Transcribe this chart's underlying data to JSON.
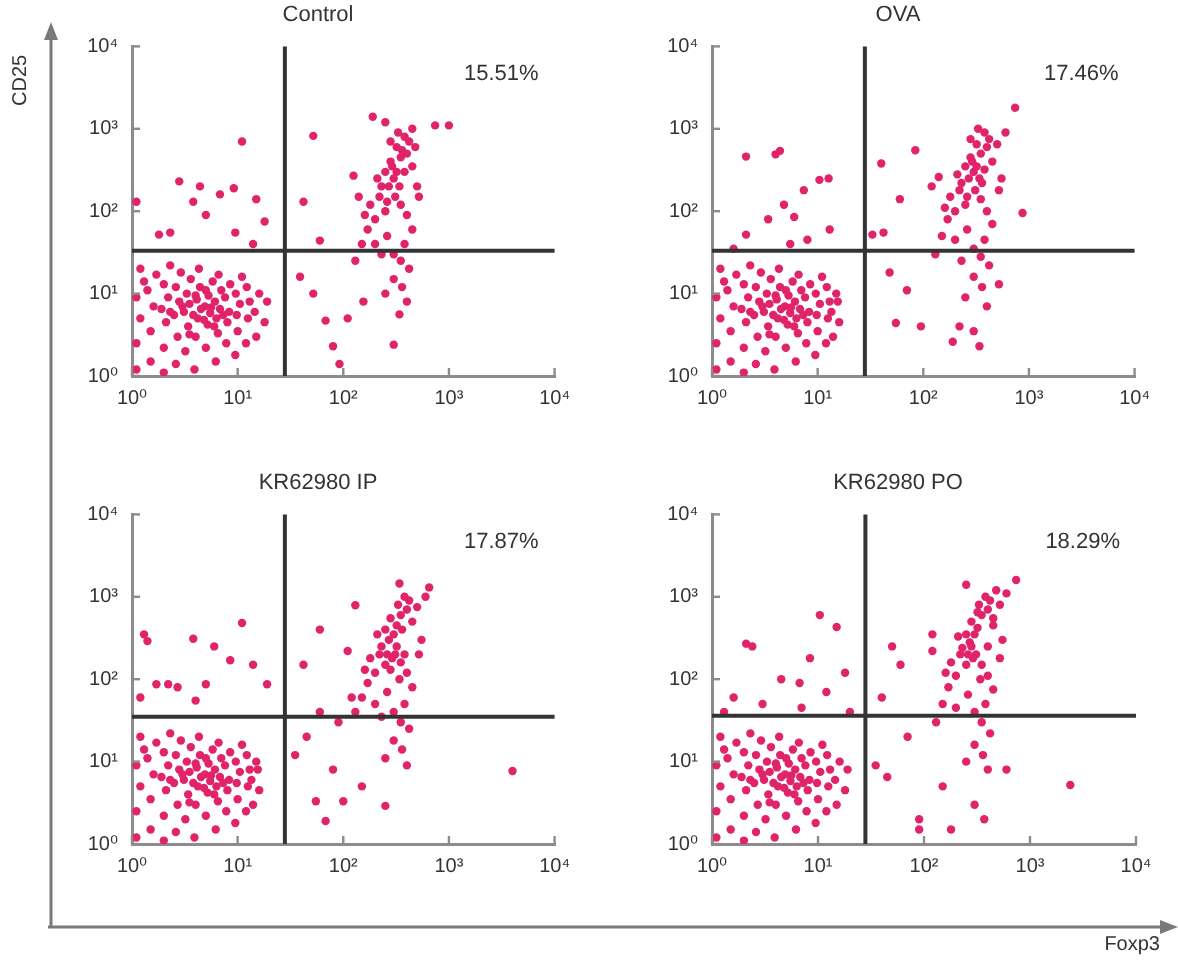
{
  "chart_data": [
    {
      "type": "scatter",
      "title": "Control",
      "ylabel": "CD25",
      "log": "xy",
      "xlim": [
        1,
        10000
      ],
      "ylim": [
        1,
        10000
      ],
      "xticks": [
        {
          "value": 1,
          "label": "10⁰"
        },
        {
          "value": 10,
          "label": "10¹"
        },
        {
          "value": 100,
          "label": "10²"
        },
        {
          "value": 1000,
          "label": "10³"
        },
        {
          "value": 10000,
          "label": "10⁴"
        }
      ],
      "yticks": [
        {
          "value": 1,
          "label": "10⁰"
        },
        {
          "value": 10,
          "label": "10¹"
        },
        {
          "value": 100,
          "label": "10²"
        },
        {
          "value": 1000,
          "label": "10³"
        },
        {
          "value": 10000,
          "label": "10⁴"
        }
      ],
      "marker": "circle",
      "annotations": [
        "15.51%"
      ],
      "ref_lines": [
        {
          "axis": "x",
          "value": 28,
          "color": "#333333"
        },
        {
          "axis": "y",
          "value": 33,
          "color": "#333333"
        }
      ],
      "series": [
        {
          "color": "#e0236a",
          "x": [
            1.1,
            1.1,
            1.2,
            1.1,
            1.3,
            1.2,
            1.5,
            1.5,
            1.6,
            1.4,
            1.7,
            2,
            2,
            2.1,
            1.9,
            2.2,
            2,
            2.3,
            2.6,
            2.7,
            2.5,
            2.8,
            2.6,
            2.9,
            3.2,
            3.4,
            3.1,
            3.5,
            3.3,
            3.6,
            3.9,
            4,
            4.2,
            4.5,
            4.1,
            4.4,
            4.3,
            5,
            5.2,
            5.5,
            4.9,
            5.3,
            5.8,
            6.2,
            6.5,
            6.3,
            6.8,
            6.1,
            7,
            6.6,
            7.8,
            8,
            8.3,
            7.6,
            8.5,
            9.5,
            10,
            9.8,
            10.5,
            9.6,
            11,
            12,
            12.5,
            13,
            12.2,
            15,
            14.5,
            16,
            18,
            19,
            3.8,
            4.8,
            5.6,
            3,
            4,
            6,
            2.3,
            7.3,
            5,
            3.5
          ],
          "values": [
            1.2,
            2.5,
            5,
            9,
            14,
            20,
            1.5,
            3.5,
            7,
            11,
            17,
            1.1,
            2.2,
            4.5,
            6.5,
            9,
            13,
            22,
            1.4,
            3,
            5.5,
            8,
            12,
            18,
            2,
            4,
            6,
            7.5,
            10,
            15,
            1.2,
            3,
            5,
            6.5,
            8.5,
            12,
            20,
            2.2,
            4.2,
            5.8,
            7,
            9.5,
            14,
            1.5,
            3.3,
            5,
            6.5,
            8,
            11,
            17,
            2.5,
            4.5,
            6,
            9,
            13,
            1.8,
            3.5,
            5.5,
            7.5,
            10,
            16,
            2.5,
            5,
            8,
            12,
            3,
            6,
            10,
            4.5,
            8,
            5.5,
            4.8,
            6.8,
            7,
            9.5,
            4,
            6,
            5.5,
            11,
            3.2
          ]
        },
        {
          "color": "#e0236a",
          "x": [
            2.8,
            4.4,
            6.8,
            9.2,
            11,
            1.1,
            3.8,
            5,
            15,
            18,
            1.8,
            2.3,
            9.5,
            14,
            39,
            52,
            68,
            80,
            92,
            60,
            42,
            52,
            125,
            155,
            110,
            340,
            300,
            190,
            250,
            740,
            1000,
            150,
            170,
            130,
            200,
            180,
            220,
            250,
            270,
            300,
            320,
            280,
            350,
            400,
            420,
            380,
            330,
            450,
            480,
            250,
            230,
            310,
            350,
            400,
            450,
            380,
            300,
            260,
            350,
            420,
            300,
            360,
            250,
            400,
            500,
            520,
            200,
            160,
            140,
            320,
            280,
            450,
            360,
            290,
            340,
            380,
            260,
            210,
            230
          ],
          "values": [
            230,
            200,
            160,
            190,
            700,
            130,
            130,
            90,
            140,
            75,
            52,
            55,
            55,
            40,
            16,
            10,
            4.7,
            2.3,
            1.4,
            44,
            130,
            820,
            270,
            8,
            5,
            5.6,
            2.4,
            1400,
            1200,
            1100,
            1100,
            40,
            60,
            25,
            80,
            120,
            150,
            100,
            200,
            250,
            300,
            400,
            450,
            500,
            700,
            800,
            900,
            350,
            600,
            300,
            200,
            150,
            120,
            90,
            60,
            40,
            30,
            50,
            25,
            20,
            15,
            12,
            10,
            8,
            200,
            150,
            40,
            90,
            150,
            600,
            700,
            1000,
            550,
            350,
            200,
            300,
            130,
            250,
            30
          ]
        }
      ]
    },
    {
      "type": "scatter",
      "title": "OVA",
      "log": "xy",
      "xlim": [
        1,
        10000
      ],
      "ylim": [
        1,
        10000
      ],
      "xticks": [
        {
          "value": 1,
          "label": "10⁰"
        },
        {
          "value": 10,
          "label": "10¹"
        },
        {
          "value": 100,
          "label": "10²"
        },
        {
          "value": 1000,
          "label": "10³"
        },
        {
          "value": 10000,
          "label": "10⁴"
        }
      ],
      "yticks": [
        {
          "value": 1,
          "label": "10⁰"
        },
        {
          "value": 10,
          "label": "10¹"
        },
        {
          "value": 100,
          "label": "10²"
        },
        {
          "value": 1000,
          "label": "10³"
        },
        {
          "value": 10000,
          "label": "10⁴"
        }
      ],
      "marker": "circle",
      "annotations": [
        "17.46%"
      ],
      "ref_lines": [
        {
          "axis": "x",
          "value": 28,
          "color": "#333333"
        },
        {
          "axis": "y",
          "value": 33,
          "color": "#333333"
        }
      ],
      "series": [
        {
          "color": "#e0236a",
          "x": [
            1.1,
            1.1,
            1.2,
            1.1,
            1.3,
            1.2,
            1.5,
            1.5,
            1.6,
            1.4,
            1.7,
            2,
            2,
            2.1,
            1.9,
            2.2,
            2,
            2.3,
            2.6,
            2.7,
            2.5,
            2.8,
            2.6,
            2.9,
            3.2,
            3.4,
            3.1,
            3.5,
            3.3,
            3.6,
            3.9,
            4,
            4.2,
            4.5,
            4.1,
            4.4,
            4.3,
            5,
            5.2,
            5.5,
            4.9,
            5.3,
            5.8,
            6.2,
            6.5,
            6.3,
            6.8,
            6.1,
            7,
            6.6,
            7.8,
            8,
            8.3,
            7.6,
            8.5,
            9.5,
            10,
            9.8,
            10.5,
            9.6,
            11,
            12,
            12.5,
            13,
            12.2,
            14,
            13.5,
            15,
            16,
            15.5,
            3.8,
            4.8,
            5.6,
            3,
            4,
            6,
            2.3,
            7.3,
            5,
            3.5
          ],
          "values": [
            1.2,
            2.5,
            5,
            9,
            14,
            20,
            1.5,
            3.5,
            7,
            11,
            17,
            1.1,
            2.2,
            4.5,
            6.5,
            9,
            13,
            22,
            1.4,
            3,
            5.5,
            8,
            12,
            18,
            2,
            4,
            6,
            7.5,
            10,
            15,
            1.2,
            3,
            5,
            6.5,
            8.5,
            12,
            20,
            2.2,
            4.2,
            5.8,
            7,
            9.5,
            14,
            1.5,
            3.3,
            5,
            6.5,
            8,
            11,
            17,
            2.5,
            4.5,
            6,
            9,
            13,
            1.8,
            3.5,
            5.5,
            7.5,
            10,
            16,
            2.5,
            5,
            8,
            12,
            3,
            6,
            10,
            4.5,
            8,
            5.5,
            4.8,
            6.8,
            7,
            9.5,
            4,
            6,
            5.5,
            11,
            3.2
          ]
        },
        {
          "color": "#e0236a",
          "x": [
            2.1,
            4,
            4.4,
            7.4,
            10.4,
            12.7,
            4.8,
            6,
            2.1,
            3.4,
            1.6,
            8,
            13,
            5.5,
            84,
            40,
            60,
            140,
            33,
            42,
            48,
            70,
            55,
            95,
            190,
            220,
            300,
            340,
            870,
            520,
            740,
            150,
            170,
            130,
            200,
            180,
            220,
            250,
            270,
            300,
            320,
            280,
            350,
            400,
            420,
            380,
            330,
            450,
            500,
            250,
            230,
            310,
            350,
            400,
            450,
            380,
            300,
            260,
            350,
            420,
            300,
            360,
            250,
            400,
            550,
            520,
            200,
            160,
            120,
            320,
            280,
            600,
            360,
            290,
            340,
            380,
            260,
            210,
            230
          ],
          "values": [
            460,
            490,
            540,
            180,
            240,
            250,
            120,
            85,
            52,
            80,
            35,
            45,
            60,
            40,
            550,
            380,
            140,
            260,
            52,
            55,
            18,
            11,
            4.4,
            4,
            2.6,
            4,
            3.5,
            2.3,
            95,
            13,
            1800,
            50,
            80,
            30,
            100,
            150,
            180,
            120,
            250,
            300,
            350,
            450,
            500,
            600,
            750,
            900,
            1000,
            400,
            650,
            350,
            220,
            180,
            140,
            100,
            70,
            45,
            35,
            60,
            28,
            22,
            16,
            12,
            9,
            7,
            250,
            180,
            45,
            110,
            200,
            650,
            750,
            900,
            220,
            400,
            250,
            320,
            150,
            280,
            25
          ]
        }
      ]
    },
    {
      "type": "scatter",
      "title": "KR62980 IP",
      "log": "xy",
      "xlim": [
        1,
        10000
      ],
      "ylim": [
        1,
        10000
      ],
      "xticks": [
        {
          "value": 1,
          "label": "10⁰"
        },
        {
          "value": 10,
          "label": "10¹"
        },
        {
          "value": 100,
          "label": "10²"
        },
        {
          "value": 1000,
          "label": "10³"
        },
        {
          "value": 10000,
          "label": "10⁴"
        }
      ],
      "yticks": [
        {
          "value": 1,
          "label": "10⁰"
        },
        {
          "value": 10,
          "label": "10¹"
        },
        {
          "value": 100,
          "label": "10²"
        },
        {
          "value": 1000,
          "label": "10³"
        },
        {
          "value": 10000,
          "label": "10⁴"
        }
      ],
      "marker": "circle",
      "annotations": [
        "17.87%"
      ],
      "ref_lines": [
        {
          "axis": "x",
          "value": 28,
          "color": "#333333"
        },
        {
          "axis": "y",
          "value": 35,
          "color": "#333333"
        }
      ],
      "series": [
        {
          "color": "#e0236a",
          "x": [
            1.1,
            1.1,
            1.2,
            1.1,
            1.3,
            1.2,
            1.5,
            1.5,
            1.6,
            1.4,
            1.7,
            2,
            2,
            2.1,
            1.9,
            2.2,
            2,
            2.3,
            2.6,
            2.7,
            2.5,
            2.8,
            2.6,
            2.9,
            3.2,
            3.4,
            3.1,
            3.5,
            3.3,
            3.6,
            3.9,
            4,
            4.2,
            4.5,
            4.1,
            4.4,
            4.3,
            5,
            5.2,
            5.5,
            4.9,
            5.3,
            5.8,
            6.2,
            6.5,
            6.3,
            6.8,
            6.1,
            7,
            6.6,
            7.8,
            8,
            8.3,
            7.6,
            8.5,
            9.5,
            10,
            9.8,
            10.5,
            9.6,
            11,
            12,
            12.5,
            13,
            12.2,
            14,
            13.5,
            15,
            16,
            15.5,
            3.8,
            4.8,
            5.6,
            3,
            4,
            6,
            2.3,
            7.3,
            5,
            3.5
          ],
          "values": [
            1.2,
            2.5,
            5,
            9,
            14,
            20,
            1.5,
            3.5,
            7,
            11,
            17,
            1.1,
            2.2,
            4.5,
            6.5,
            9,
            13,
            22,
            1.4,
            3,
            5.5,
            8,
            12,
            18,
            2,
            4,
            6,
            7.5,
            10,
            15,
            1.2,
            3,
            5,
            6.5,
            8.5,
            12,
            20,
            2.2,
            4.2,
            5.8,
            7,
            9.5,
            14,
            1.5,
            3.3,
            5,
            6.5,
            8,
            11,
            17,
            2.5,
            4.5,
            6,
            9,
            13,
            1.8,
            3.5,
            5.5,
            7.5,
            10,
            16,
            2.5,
            5,
            8,
            12,
            3,
            6,
            10,
            4.5,
            8,
            5.5,
            4.8,
            6.8,
            7,
            9.5,
            4,
            6,
            5.5,
            11,
            3.2
          ]
        },
        {
          "color": "#e0236a",
          "x": [
            1.3,
            1.4,
            3.8,
            6,
            11,
            8.5,
            14,
            1.7,
            2.2,
            2.7,
            5,
            19,
            1.2,
            4,
            42,
            60,
            130,
            4000,
            68,
            100,
            55,
            35,
            45,
            80,
            60,
            150,
            250,
            340,
            650,
            120,
            90,
            150,
            170,
            130,
            200,
            180,
            220,
            250,
            270,
            300,
            320,
            280,
            350,
            400,
            420,
            380,
            330,
            450,
            500,
            250,
            230,
            310,
            350,
            400,
            450,
            380,
            300,
            260,
            350,
            420,
            300,
            360,
            250,
            400,
            550,
            520,
            200,
            160,
            110,
            320,
            280,
            600,
            360,
            290,
            340,
            380,
            260,
            210,
            230
          ],
          "values": [
            350,
            290,
            310,
            250,
            480,
            170,
            150,
            87,
            87,
            80,
            87,
            87,
            60,
            55,
            150,
            400,
            790,
            7.7,
            1.9,
            3.3,
            3.3,
            12,
            20,
            8,
            40,
            5,
            2.9,
            1450,
            1300,
            60,
            30,
            60,
            90,
            40,
            120,
            180,
            200,
            150,
            300,
            350,
            450,
            550,
            600,
            700,
            900,
            1000,
            800,
            500,
            750,
            400,
            250,
            200,
            160,
            120,
            80,
            50,
            40,
            70,
            30,
            25,
            18,
            14,
            11,
            9,
            300,
            200,
            50,
            130,
            220,
            250,
            130,
            1000,
            400,
            180,
            100,
            200,
            200,
            350,
            35
          ]
        }
      ]
    },
    {
      "type": "scatter",
      "title": "KR62980 PO",
      "xlabel": "Foxp3",
      "log": "xy",
      "xlim": [
        1,
        10000
      ],
      "ylim": [
        1,
        10000
      ],
      "xticks": [
        {
          "value": 1,
          "label": "10⁰"
        },
        {
          "value": 10,
          "label": "10¹"
        },
        {
          "value": 100,
          "label": "10²"
        },
        {
          "value": 1000,
          "label": "10³"
        },
        {
          "value": 10000,
          "label": "10⁴"
        }
      ],
      "yticks": [
        {
          "value": 1,
          "label": "10⁰"
        },
        {
          "value": 10,
          "label": "10¹"
        },
        {
          "value": 100,
          "label": "10²"
        },
        {
          "value": 1000,
          "label": "10³"
        },
        {
          "value": 10000,
          "label": "10⁴"
        }
      ],
      "marker": "circle",
      "annotations": [
        "18.29%"
      ],
      "ref_lines": [
        {
          "axis": "x",
          "value": 28,
          "color": "#333333"
        },
        {
          "axis": "y",
          "value": 36,
          "color": "#333333"
        }
      ],
      "series": [
        {
          "color": "#e0236a",
          "x": [
            1.1,
            1.1,
            1.2,
            1.1,
            1.3,
            1.2,
            1.5,
            1.5,
            1.6,
            1.4,
            1.7,
            2,
            2,
            2.1,
            1.9,
            2.2,
            2,
            2.3,
            2.6,
            2.7,
            2.5,
            2.8,
            2.6,
            2.9,
            3.2,
            3.4,
            3.1,
            3.5,
            3.3,
            3.6,
            3.9,
            4,
            4.2,
            4.5,
            4.1,
            4.4,
            4.3,
            5,
            5.2,
            5.5,
            4.9,
            5.3,
            5.8,
            6.2,
            6.5,
            6.3,
            6.8,
            6.1,
            7,
            6.6,
            7.8,
            8,
            8.3,
            7.6,
            8.5,
            9.5,
            10,
            9.8,
            10.5,
            9.6,
            11,
            12,
            12.5,
            13,
            12.2,
            15,
            14.5,
            16,
            18,
            19,
            3.8,
            4.8,
            5.6,
            3,
            4,
            6,
            2.3,
            7.3,
            5,
            3.5
          ],
          "values": [
            1.2,
            2.5,
            5,
            9,
            14,
            20,
            1.5,
            3.5,
            7,
            11,
            17,
            1.1,
            2.2,
            4.5,
            6.5,
            9,
            13,
            22,
            1.4,
            3,
            5.5,
            8,
            12,
            18,
            2,
            4,
            6,
            7.5,
            10,
            15,
            1.2,
            3,
            5,
            6.5,
            8.5,
            12,
            20,
            2.2,
            4.2,
            5.8,
            7,
            9.5,
            14,
            1.5,
            3.3,
            5,
            6.5,
            8,
            11,
            17,
            2.5,
            4.5,
            6,
            9,
            13,
            1.8,
            3.5,
            5.5,
            7.5,
            10,
            16,
            2.5,
            5,
            8,
            12,
            3,
            6,
            10,
            4.5,
            8,
            5.5,
            4.8,
            6.8,
            7,
            9.5,
            4,
            6,
            5.5,
            11,
            3.2
          ]
        },
        {
          "color": "#e0236a",
          "x": [
            10.4,
            15,
            2.1,
            2.4,
            8.4,
            4.5,
            6.7,
            1.6,
            3,
            12,
            18,
            1.3,
            7,
            20,
            2400,
            35,
            45,
            90,
            180,
            90,
            740,
            250,
            50,
            60,
            40,
            120,
            70,
            150,
            300,
            370,
            600,
            150,
            170,
            130,
            200,
            180,
            220,
            250,
            270,
            300,
            320,
            280,
            350,
            400,
            420,
            380,
            330,
            450,
            520,
            250,
            230,
            310,
            350,
            400,
            450,
            380,
            300,
            260,
            350,
            420,
            300,
            360,
            250,
            400,
            550,
            520,
            200,
            160,
            120,
            320,
            280,
            600,
            450,
            290,
            340,
            400,
            260,
            210,
            480
          ],
          "values": [
            600,
            430,
            270,
            250,
            180,
            100,
            90,
            60,
            50,
            70,
            120,
            40,
            45,
            40,
            5.2,
            9,
            6.5,
            1.5,
            1.5,
            2,
            1600,
            1400,
            250,
            150,
            60,
            350,
            20,
            5,
            3,
            2,
            8,
            50,
            80,
            30,
            110,
            160,
            200,
            150,
            280,
            350,
            420,
            500,
            600,
            700,
            900,
            1000,
            800,
            450,
            800,
            350,
            240,
            200,
            150,
            110,
            75,
            50,
            40,
            65,
            30,
            22,
            16,
            12,
            10,
            8,
            300,
            180,
            45,
            120,
            220,
            650,
            250,
            1100,
            550,
            180,
            100,
            250,
            200,
            330,
            1200
          ]
        }
      ]
    }
  ]
}
